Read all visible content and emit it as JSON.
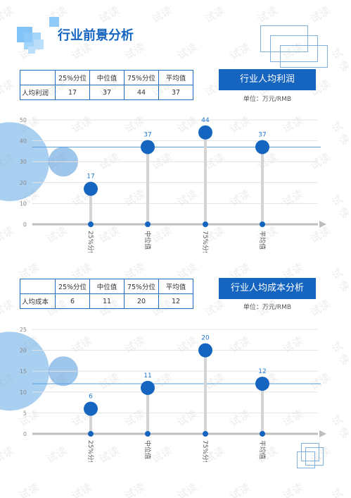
{
  "page_title": "行业前景分析",
  "section1": {
    "title": "行业人均利润",
    "unit": "单位：万元/RMB",
    "table": {
      "headers": [
        "",
        "25%分位",
        "中位值",
        "75%分位",
        "平均值"
      ],
      "row_label": "人均利润",
      "values": [
        "17",
        "37",
        "44",
        "37"
      ]
    }
  },
  "section2": {
    "title": "行业人均成本分析",
    "unit": "单位：万元/RMB",
    "table": {
      "headers": [
        "",
        "25%分位",
        "中位值",
        "75%分位",
        "平均值"
      ],
      "row_label": "人均成本",
      "values": [
        "6",
        "11",
        "20",
        "12"
      ]
    }
  },
  "watermark": "试读",
  "chart_data": [
    {
      "type": "scatter",
      "categories": [
        "25%分位",
        "中位值",
        "75%分位",
        "平均值"
      ],
      "values": [
        17,
        37,
        44,
        37
      ],
      "yticks": [
        0,
        10,
        20,
        30,
        40,
        50
      ],
      "ylim": [
        0,
        50
      ],
      "reference_line": 37,
      "colors": {
        "point": "#1565c0",
        "stem": "#d4d4d4",
        "axis": "#bdbdbd",
        "label": "#1976d2"
      }
    },
    {
      "type": "scatter",
      "categories": [
        "25%分位",
        "中位值",
        "75%分位",
        "平均值"
      ],
      "values": [
        6,
        11,
        20,
        12
      ],
      "yticks": [
        0,
        5,
        10,
        15,
        20,
        25
      ],
      "ylim": [
        0,
        25
      ],
      "reference_line": 12,
      "colors": {
        "point": "#1565c0",
        "stem": "#d4d4d4",
        "axis": "#bdbdbd",
        "label": "#1976d2"
      }
    }
  ]
}
